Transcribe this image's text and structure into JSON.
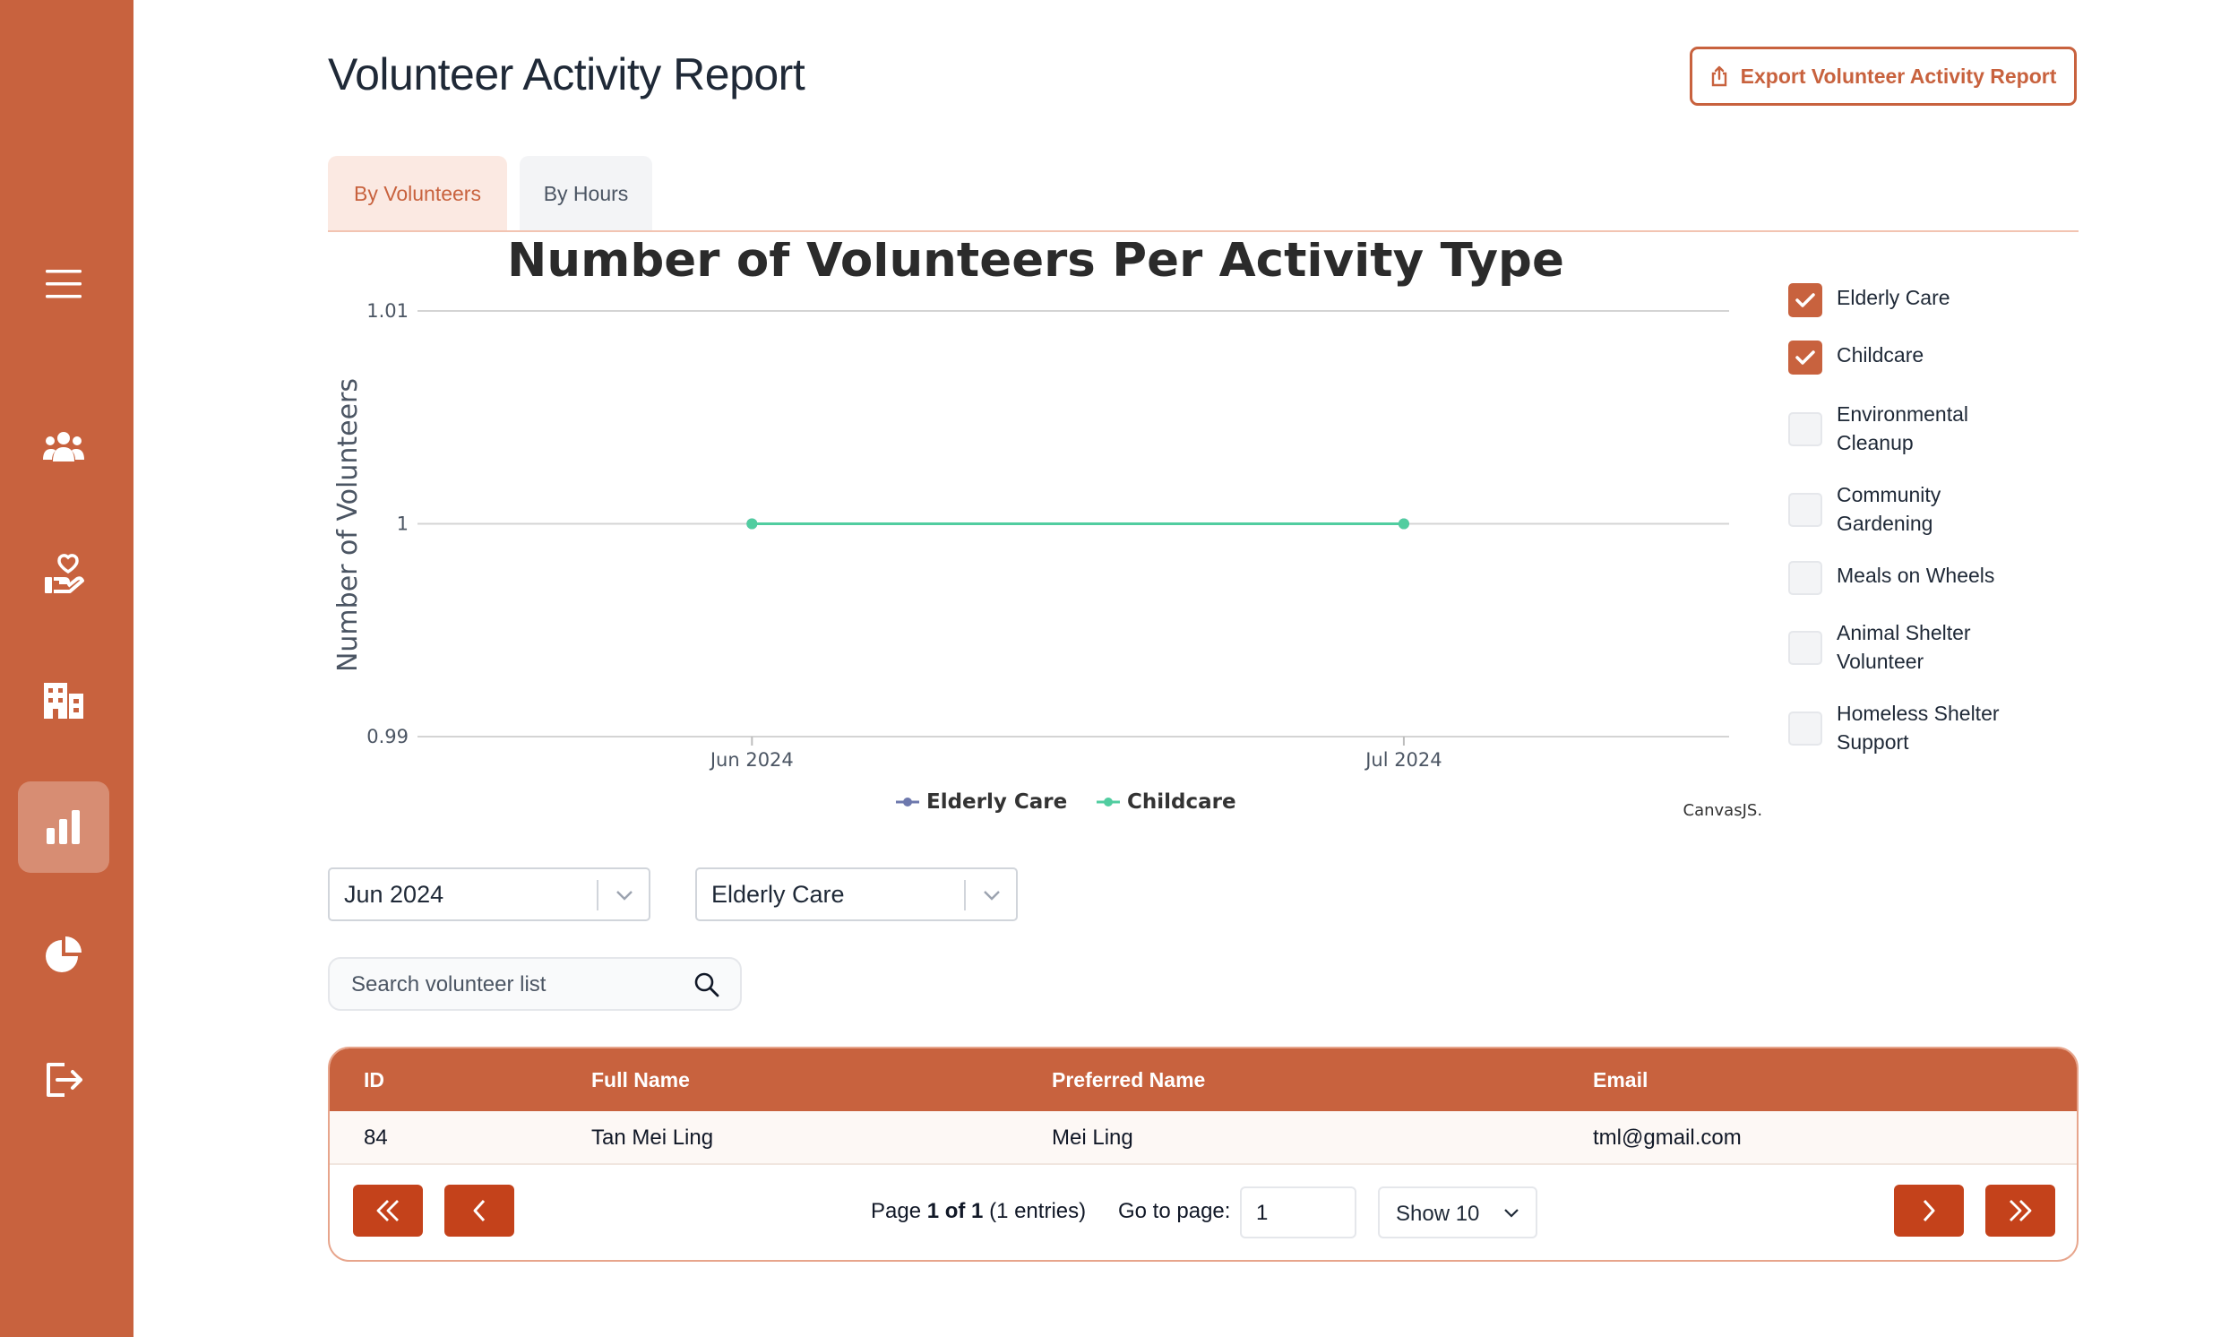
{
  "page": {
    "title": "Volunteer Activity Report",
    "export_label": "Export Volunteer Activity Report"
  },
  "sidebar": {
    "items": [
      {
        "icon": "hamburger-menu-icon"
      },
      {
        "icon": "users-group-icon"
      },
      {
        "icon": "hand-heart-icon"
      },
      {
        "icon": "building-icon"
      },
      {
        "icon": "bar-chart-icon",
        "active": true
      },
      {
        "icon": "pie-chart-icon"
      },
      {
        "icon": "logout-icon"
      }
    ]
  },
  "tabs": [
    {
      "label": "By Volunteers",
      "active": true
    },
    {
      "label": "By Hours",
      "active": false
    }
  ],
  "chart_data": {
    "type": "line",
    "title": "Number of Volunteers Per Activity Type",
    "xlabel": "",
    "ylabel": "Number of Volunteers",
    "x": [
      "Jun 2024",
      "Jul 2024"
    ],
    "yticks": [
      "1.01",
      "1",
      "0.99"
    ],
    "ylim": [
      0.99,
      1.01
    ],
    "series": [
      {
        "name": "Elderly Care",
        "values": [
          1,
          1
        ],
        "color": "#6d78ad"
      },
      {
        "name": "Childcare",
        "values": [
          1,
          1
        ],
        "color": "#51cda0"
      }
    ],
    "legend_position": "bottom",
    "credit": "CanvasJS.com",
    "grid": true
  },
  "filters": [
    {
      "label": "Elderly Care",
      "checked": true
    },
    {
      "label": "Childcare",
      "checked": true
    },
    {
      "label": "Environmental Cleanup",
      "checked": false
    },
    {
      "label": "Community Gardening",
      "checked": false
    },
    {
      "label": "Meals on Wheels",
      "checked": false
    },
    {
      "label": "Animal Shelter Volunteer",
      "checked": false
    },
    {
      "label": "Homeless Shelter Support",
      "checked": false
    }
  ],
  "selects": {
    "month": "Jun 2024",
    "activity": "Elderly Care"
  },
  "search": {
    "placeholder": "Search volunteer list"
  },
  "table": {
    "headers": {
      "id": "ID",
      "full_name": "Full Name",
      "preferred_name": "Preferred Name",
      "email": "Email"
    },
    "rows": [
      {
        "id": "84",
        "full_name": "Tan Mei Ling",
        "preferred_name": "Mei Ling",
        "email": "tml@gmail.com"
      }
    ]
  },
  "pagination": {
    "page_prefix": "Page ",
    "page_value": "1 of 1",
    "entries": " (1 entries)",
    "goto_label": "Go to page:",
    "goto_value": "1",
    "show_label": "Show 10"
  },
  "colors": {
    "accent": "#c8623e",
    "button": "#c4421b"
  }
}
